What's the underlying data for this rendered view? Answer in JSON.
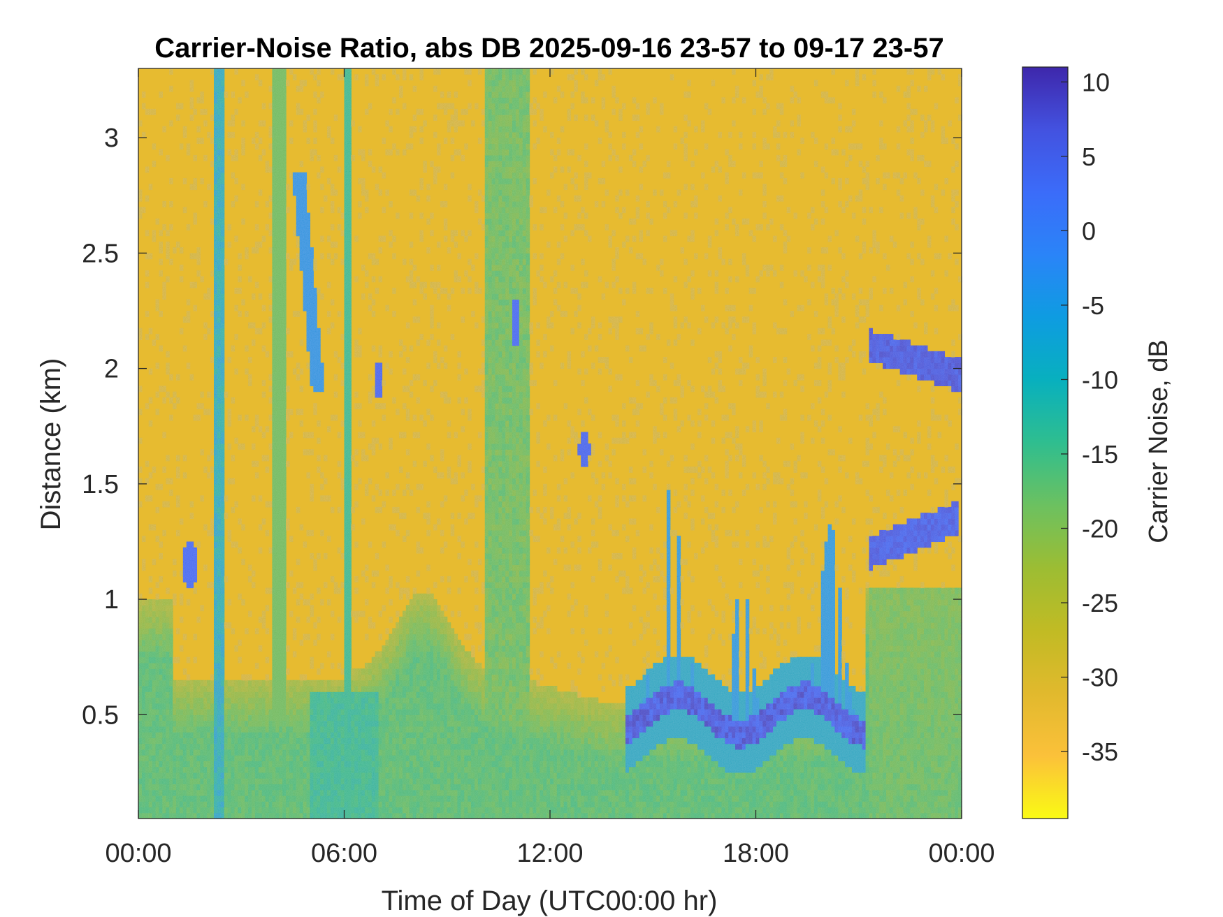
{
  "chart_data": {
    "type": "heatmap",
    "title": "Carrier-Noise Ratio, abs DB 2025-09-16 23-57 to 09-17 23-57",
    "xlabel": "Time of Day (UTC00:00 hr)",
    "ylabel": "Distance (km)",
    "colorbar_label": "Carrier Noise, dB",
    "x_ticks": [
      "00:00",
      "06:00",
      "12:00",
      "18:00",
      "00:00"
    ],
    "x_tick_hours": [
      0,
      6,
      12,
      18,
      24
    ],
    "xlim_hours": [
      0,
      24
    ],
    "y_ticks": [
      "0.5",
      "1",
      "1.5",
      "2",
      "2.5",
      "3"
    ],
    "y_tick_values": [
      0.5,
      1,
      1.5,
      2,
      2.5,
      3
    ],
    "ylim": [
      0.05,
      3.3
    ],
    "color_ticks": [
      "10",
      "5",
      "0",
      "-5",
      "-10",
      "-15",
      "-20",
      "-25",
      "-30",
      "-35"
    ],
    "color_tick_values": [
      10,
      5,
      0,
      -5,
      -10,
      -15,
      -20,
      -25,
      -30,
      -35
    ],
    "clim": [
      -39.5,
      11
    ],
    "colormap": [
      "#fafa14",
      "#fbc13a",
      "#e1b92d",
      "#c1bb24",
      "#9cbd33",
      "#6cc160",
      "#2fbe8f",
      "#08b0be",
      "#0e9ce1",
      "#2a84f8",
      "#3b6cf9",
      "#4352e0",
      "#3e27ab"
    ],
    "background_db": -32,
    "grid": false,
    "features": [
      {
        "kind": "boundary_layer",
        "description_db": -16,
        "note": "near-surface returns below ~1 km"
      },
      {
        "kind": "cloud_layer",
        "t_start_hr": 14.2,
        "t_end_hr": 21.2,
        "distance_km": 0.5,
        "db": 5
      },
      {
        "kind": "cloud_layer",
        "t_start_hr": 21.3,
        "t_end_hr": 23.8,
        "distance_km": 1.2,
        "db": 5
      },
      {
        "kind": "cloud_layer",
        "t_start_hr": 21.3,
        "t_end_hr": 24.0,
        "distance_km": 2.0,
        "db": 6
      },
      {
        "kind": "column",
        "t_start_hr": 2.2,
        "t_end_hr": 2.5,
        "db": -10
      },
      {
        "kind": "column",
        "t_start_hr": 10.1,
        "t_end_hr": 11.5,
        "db": -18
      }
    ]
  }
}
